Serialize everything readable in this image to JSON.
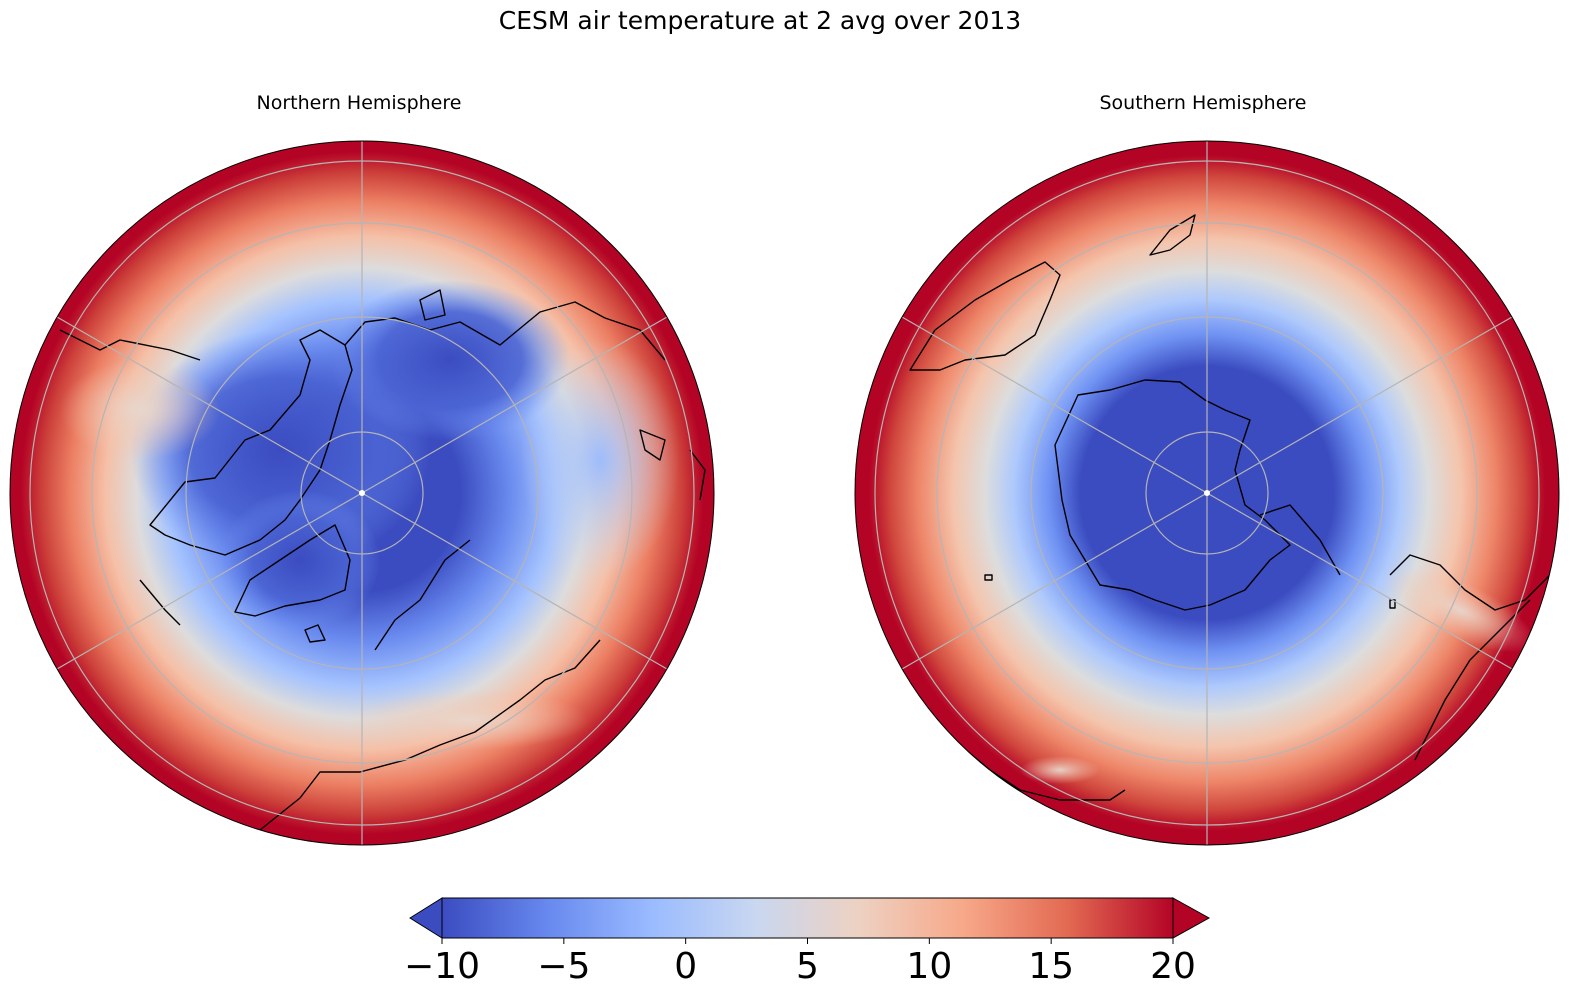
{
  "title": "CESM air temperature at 2 avg over 2013",
  "panels": [
    {
      "id": "nh",
      "title": "Northern Hemisphere",
      "pole": "north"
    },
    {
      "id": "sh",
      "title": "Southern Hemisphere",
      "pole": "south"
    }
  ],
  "colorbar": {
    "colormap": "coolwarm",
    "vmin": -10,
    "vmax": 20,
    "extend": "both",
    "ticks": [
      "−10",
      "−5",
      "0",
      "5",
      "10",
      "15",
      "20"
    ],
    "colors": [
      "#3b4cc0",
      "#6788ee",
      "#9abbff",
      "#c9d7f0",
      "#edd1c2",
      "#f7a889",
      "#e26952",
      "#b40426"
    ]
  },
  "graticule": {
    "latitude_circles_deg": [
      80,
      70,
      60,
      50,
      40
    ],
    "meridians_every_deg": 60
  }
}
